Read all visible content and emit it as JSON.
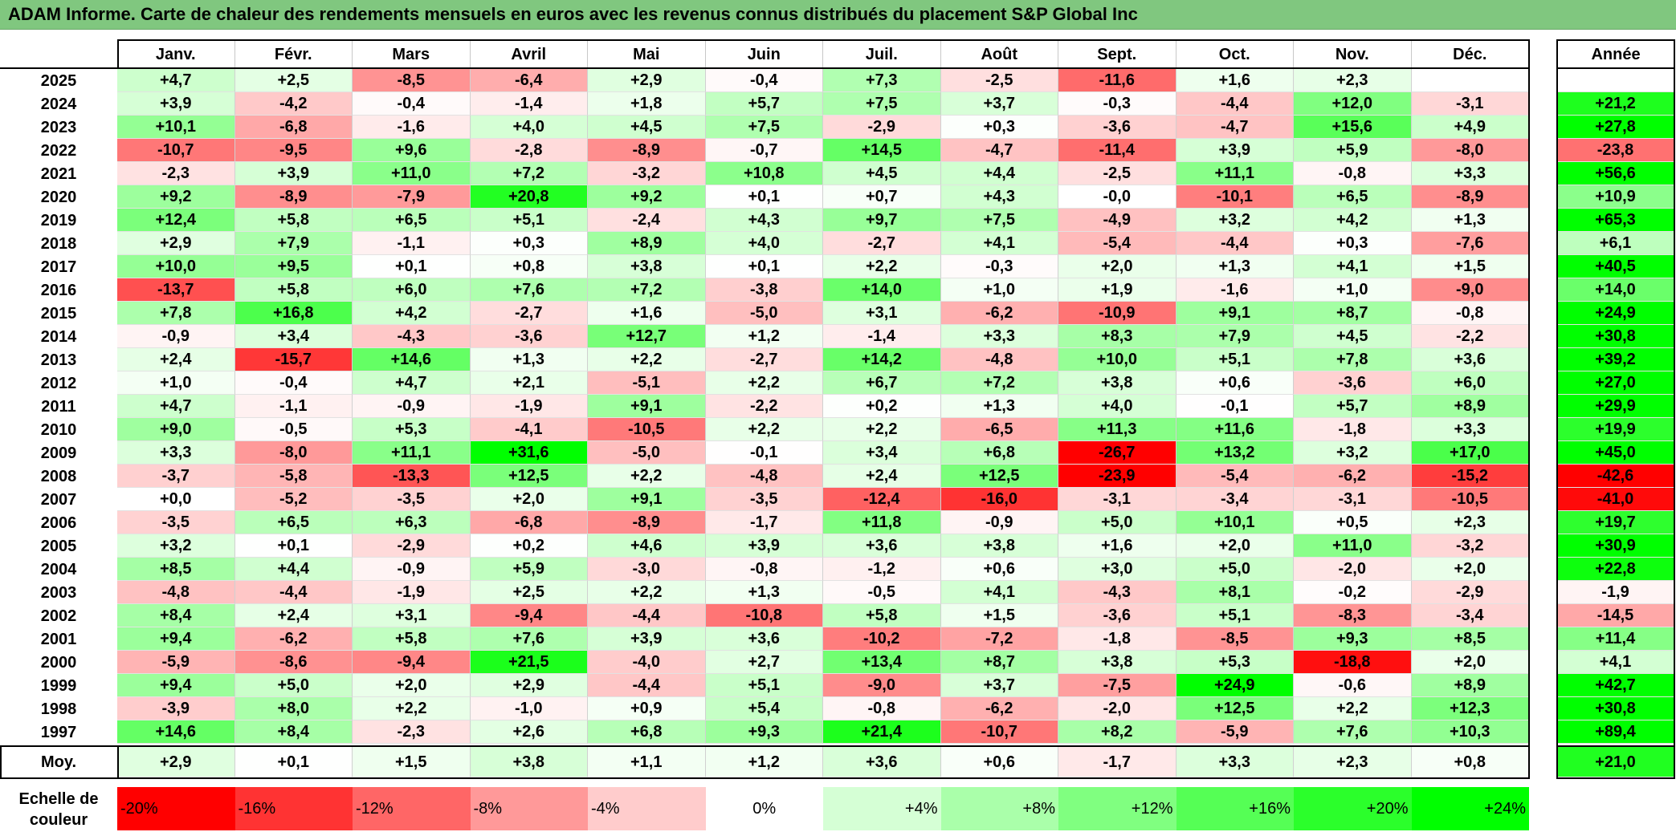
{
  "title": "ADAM Informe. Carte de chaleur des rendements mensuels en euros avec les revenus connus distribués du placement S&P Global Inc",
  "colors": {
    "title_bg": "#80c77f",
    "max_negative": "#ff0000",
    "zero": "#ffffff",
    "max_positive": "#00ff00"
  },
  "chart_data": {
    "type": "heatmap",
    "title": "ADAM Informe. Carte de chaleur des rendements mensuels en euros avec les revenus connus distribués du placement S&P Global Inc",
    "months": [
      "Janv.",
      "Févr.",
      "Mars",
      "Avril",
      "Mai",
      "Juin",
      "Juil.",
      "Août",
      "Sept.",
      "Oct.",
      "Nov.",
      "Déc."
    ],
    "year_column_label": "Année",
    "rows": [
      {
        "year": "2025",
        "values": [
          "+4,7",
          "+2,5",
          "-8,5",
          "-6,4",
          "+2,9",
          "-0,4",
          "+7,3",
          "-2,5",
          "-11,6",
          "+1,6",
          "+2,3",
          ""
        ],
        "annual": ""
      },
      {
        "year": "2024",
        "values": [
          "+3,9",
          "-4,2",
          "-0,4",
          "-1,4",
          "+1,8",
          "+5,7",
          "+7,5",
          "+3,7",
          "-0,3",
          "-4,4",
          "+12,0",
          "-3,1"
        ],
        "annual": "+21,2"
      },
      {
        "year": "2023",
        "values": [
          "+10,1",
          "-6,8",
          "-1,6",
          "+4,0",
          "+4,5",
          "+7,5",
          "-2,9",
          "+0,3",
          "-3,6",
          "-4,7",
          "+15,6",
          "+4,9"
        ],
        "annual": "+27,8"
      },
      {
        "year": "2022",
        "values": [
          "-10,7",
          "-9,5",
          "+9,6",
          "-2,8",
          "-8,9",
          "-0,7",
          "+14,5",
          "-4,7",
          "-11,4",
          "+3,9",
          "+5,9",
          "-8,0"
        ],
        "annual": "-23,8"
      },
      {
        "year": "2021",
        "values": [
          "-2,3",
          "+3,9",
          "+11,0",
          "+7,2",
          "-3,2",
          "+10,8",
          "+4,5",
          "+4,4",
          "-2,5",
          "+11,1",
          "-0,8",
          "+3,3"
        ],
        "annual": "+56,6"
      },
      {
        "year": "2020",
        "values": [
          "+9,2",
          "-8,9",
          "-7,9",
          "+20,8",
          "+9,2",
          "+0,1",
          "+0,7",
          "+4,3",
          "-0,0",
          "-10,1",
          "+6,5",
          "-8,9"
        ],
        "annual": "+10,9"
      },
      {
        "year": "2019",
        "values": [
          "+12,4",
          "+5,8",
          "+6,5",
          "+5,1",
          "-2,4",
          "+4,3",
          "+9,7",
          "+7,5",
          "-4,9",
          "+3,2",
          "+4,2",
          "+1,3"
        ],
        "annual": "+65,3"
      },
      {
        "year": "2018",
        "values": [
          "+2,9",
          "+7,9",
          "-1,1",
          "+0,3",
          "+8,9",
          "+4,0",
          "-2,7",
          "+4,1",
          "-5,4",
          "-4,4",
          "+0,3",
          "-7,6"
        ],
        "annual": "+6,1"
      },
      {
        "year": "2017",
        "values": [
          "+10,0",
          "+9,5",
          "+0,1",
          "+0,8",
          "+3,8",
          "+0,1",
          "+2,2",
          "-0,3",
          "+2,0",
          "+1,3",
          "+4,1",
          "+1,5"
        ],
        "annual": "+40,5"
      },
      {
        "year": "2016",
        "values": [
          "-13,7",
          "+5,8",
          "+6,0",
          "+7,6",
          "+7,2",
          "-3,8",
          "+14,0",
          "+1,0",
          "+1,9",
          "-1,6",
          "+1,0",
          "-9,0"
        ],
        "annual": "+14,0"
      },
      {
        "year": "2015",
        "values": [
          "+7,8",
          "+16,8",
          "+4,2",
          "-2,7",
          "+1,6",
          "-5,0",
          "+3,1",
          "-6,2",
          "-10,9",
          "+9,1",
          "+8,7",
          "-0,8"
        ],
        "annual": "+24,9"
      },
      {
        "year": "2014",
        "values": [
          "-0,9",
          "+3,4",
          "-4,3",
          "-3,6",
          "+12,7",
          "+1,2",
          "-1,4",
          "+3,3",
          "+8,3",
          "+7,9",
          "+4,5",
          "-2,2"
        ],
        "annual": "+30,8"
      },
      {
        "year": "2013",
        "values": [
          "+2,4",
          "-15,7",
          "+14,6",
          "+1,3",
          "+2,2",
          "-2,7",
          "+14,2",
          "-4,8",
          "+10,0",
          "+5,1",
          "+7,8",
          "+3,6"
        ],
        "annual": "+39,2"
      },
      {
        "year": "2012",
        "values": [
          "+1,0",
          "-0,4",
          "+4,7",
          "+2,1",
          "-5,1",
          "+2,2",
          "+6,7",
          "+7,2",
          "+3,8",
          "+0,6",
          "-3,6",
          "+6,0"
        ],
        "annual": "+27,0"
      },
      {
        "year": "2011",
        "values": [
          "+4,7",
          "-1,1",
          "-0,9",
          "-1,9",
          "+9,1",
          "-2,2",
          "+0,2",
          "+1,3",
          "+4,0",
          "-0,1",
          "+5,7",
          "+8,9"
        ],
        "annual": "+29,9"
      },
      {
        "year": "2010",
        "values": [
          "+9,0",
          "-0,5",
          "+5,3",
          "-4,1",
          "-10,5",
          "+2,2",
          "+2,2",
          "-6,5",
          "+11,3",
          "+11,6",
          "-1,8",
          "+3,3"
        ],
        "annual": "+19,9"
      },
      {
        "year": "2009",
        "values": [
          "+3,3",
          "-8,0",
          "+11,1",
          "+31,6",
          "-5,0",
          "-0,1",
          "+3,4",
          "+6,8",
          "-26,7",
          "+13,2",
          "+3,2",
          "+17,0"
        ],
        "annual": "+45,0"
      },
      {
        "year": "2008",
        "values": [
          "-3,7",
          "-5,8",
          "-13,3",
          "+12,5",
          "+2,2",
          "-4,8",
          "+2,4",
          "+12,5",
          "-23,9",
          "-5,4",
          "-6,2",
          "-15,2"
        ],
        "annual": "-42,6"
      },
      {
        "year": "2007",
        "values": [
          "+0,0",
          "-5,2",
          "-3,5",
          "+2,0",
          "+9,1",
          "-3,5",
          "-12,4",
          "-16,0",
          "-3,1",
          "-3,4",
          "-3,1",
          "-10,5"
        ],
        "annual": "-41,0"
      },
      {
        "year": "2006",
        "values": [
          "-3,5",
          "+6,5",
          "+6,3",
          "-6,8",
          "-8,9",
          "-1,7",
          "+11,8",
          "-0,9",
          "+5,0",
          "+10,1",
          "+0,5",
          "+2,3"
        ],
        "annual": "+19,7"
      },
      {
        "year": "2005",
        "values": [
          "+3,2",
          "+0,1",
          "-2,9",
          "+0,2",
          "+4,6",
          "+3,9",
          "+3,6",
          "+3,8",
          "+1,6",
          "+2,0",
          "+11,0",
          "-3,2"
        ],
        "annual": "+30,9"
      },
      {
        "year": "2004",
        "values": [
          "+8,5",
          "+4,4",
          "-0,9",
          "+5,9",
          "-3,0",
          "-0,8",
          "-1,2",
          "+0,6",
          "+3,0",
          "+5,0",
          "-2,0",
          "+2,0"
        ],
        "annual": "+22,8"
      },
      {
        "year": "2003",
        "values": [
          "-4,8",
          "-4,4",
          "-1,9",
          "+2,5",
          "+2,2",
          "+1,3",
          "-0,5",
          "+4,1",
          "-4,3",
          "+8,1",
          "-0,2",
          "-2,9"
        ],
        "annual": "-1,9"
      },
      {
        "year": "2002",
        "values": [
          "+8,4",
          "+2,4",
          "+3,1",
          "-9,4",
          "-4,4",
          "-10,8",
          "+5,8",
          "+1,5",
          "-3,6",
          "+5,1",
          "-8,3",
          "-3,4"
        ],
        "annual": "-14,5"
      },
      {
        "year": "2001",
        "values": [
          "+9,4",
          "-6,2",
          "+5,8",
          "+7,6",
          "+3,9",
          "+3,6",
          "-10,2",
          "-7,2",
          "-1,8",
          "-8,5",
          "+9,3",
          "+8,5"
        ],
        "annual": "+11,4"
      },
      {
        "year": "2000",
        "values": [
          "-5,9",
          "-8,6",
          "-9,4",
          "+21,5",
          "-4,0",
          "+2,7",
          "+13,4",
          "+8,7",
          "+3,8",
          "+5,3",
          "-18,8",
          "+2,0"
        ],
        "annual": "+4,1"
      },
      {
        "year": "1999",
        "values": [
          "+9,4",
          "+5,0",
          "+2,0",
          "+2,9",
          "-4,4",
          "+5,1",
          "-9,0",
          "+3,7",
          "-7,5",
          "+24,9",
          "-0,6",
          "+8,9"
        ],
        "annual": "+42,7"
      },
      {
        "year": "1998",
        "values": [
          "-3,9",
          "+8,0",
          "+2,2",
          "-1,0",
          "+0,9",
          "+5,4",
          "-0,8",
          "-6,2",
          "-2,0",
          "+12,5",
          "+2,2",
          "+12,3"
        ],
        "annual": "+30,8"
      },
      {
        "year": "1997",
        "values": [
          "+14,6",
          "+8,4",
          "-2,3",
          "+2,6",
          "+6,8",
          "+9,3",
          "+21,4",
          "-10,7",
          "+8,2",
          "-5,9",
          "+7,6",
          "+10,3"
        ],
        "annual": "+89,4"
      }
    ],
    "average_row": {
      "label": "Moy.",
      "values": [
        "+2,9",
        "+0,1",
        "+1,5",
        "+3,8",
        "+1,1",
        "+1,2",
        "+3,6",
        "+0,6",
        "-1,7",
        "+3,3",
        "+2,3",
        "+0,8"
      ],
      "annual": "+21,0"
    },
    "color_scale": {
      "label_line1": "Echelle de",
      "label_line2": "couleur",
      "stops": [
        "-20%",
        "-16%",
        "-12%",
        "-8%",
        "-4%",
        "0%",
        "+4%",
        "+8%",
        "+12%",
        "+16%",
        "+20%",
        "+24%"
      ]
    }
  }
}
